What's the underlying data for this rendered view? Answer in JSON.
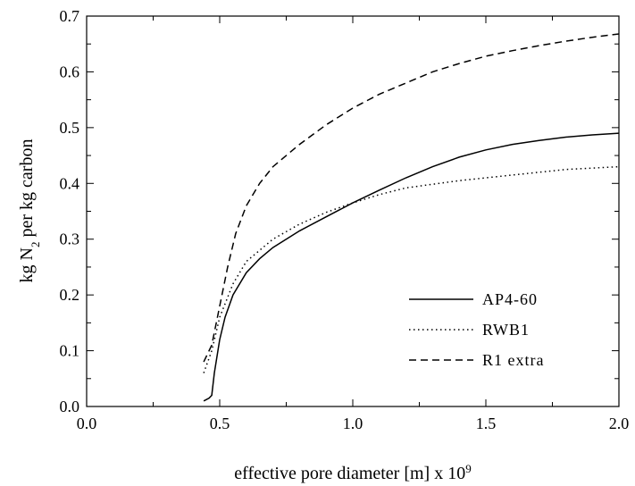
{
  "chart_data": {
    "type": "line",
    "xlabel": {
      "pre": "effective pore diameter [m] x 10",
      "sup": "9"
    },
    "ylabel": {
      "pre": "kg N",
      "sub": "2",
      "post": " per kg carbon"
    },
    "xlim": [
      0.0,
      2.0
    ],
    "ylim": [
      0.0,
      0.7
    ],
    "xticks": [
      "0.0",
      "0.5",
      "1.0",
      "1.5",
      "2.0"
    ],
    "yticks": [
      "0.0",
      "0.1",
      "0.2",
      "0.3",
      "0.4",
      "0.5",
      "0.6",
      "0.7"
    ],
    "grid": false,
    "legend_position": "lower-right",
    "series": [
      {
        "name": "AP4-60",
        "style": "solid",
        "color": "#000000",
        "x": [
          0.44,
          0.46,
          0.47,
          0.48,
          0.5,
          0.52,
          0.55,
          0.6,
          0.65,
          0.7,
          0.8,
          0.9,
          1.0,
          1.1,
          1.2,
          1.3,
          1.4,
          1.5,
          1.6,
          1.7,
          1.8,
          1.9,
          2.0
        ],
        "y": [
          0.01,
          0.015,
          0.02,
          0.06,
          0.12,
          0.16,
          0.2,
          0.24,
          0.265,
          0.285,
          0.315,
          0.34,
          0.365,
          0.388,
          0.41,
          0.43,
          0.447,
          0.46,
          0.47,
          0.477,
          0.483,
          0.487,
          0.49
        ]
      },
      {
        "name": "RWB1",
        "style": "dotted",
        "color": "#000000",
        "x": [
          0.44,
          0.47,
          0.5,
          0.55,
          0.6,
          0.7,
          0.8,
          0.9,
          1.0,
          1.1,
          1.2,
          1.4,
          1.6,
          1.8,
          2.0
        ],
        "y": [
          0.06,
          0.1,
          0.16,
          0.22,
          0.26,
          0.3,
          0.327,
          0.348,
          0.365,
          0.38,
          0.392,
          0.405,
          0.415,
          0.425,
          0.43
        ]
      },
      {
        "name": "R1 extra",
        "style": "dashed",
        "color": "#000000",
        "x": [
          0.44,
          0.47,
          0.5,
          0.53,
          0.56,
          0.6,
          0.65,
          0.7,
          0.8,
          0.9,
          1.0,
          1.1,
          1.2,
          1.3,
          1.4,
          1.5,
          1.6,
          1.7,
          1.8,
          1.9,
          2.0
        ],
        "y": [
          0.08,
          0.11,
          0.18,
          0.25,
          0.31,
          0.36,
          0.4,
          0.43,
          0.47,
          0.505,
          0.535,
          0.56,
          0.58,
          0.6,
          0.615,
          0.628,
          0.638,
          0.647,
          0.655,
          0.662,
          0.668
        ]
      }
    ]
  }
}
